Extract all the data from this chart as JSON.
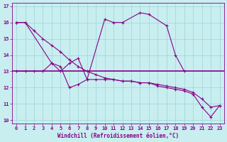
{
  "xlabel": "Windchill (Refroidissement éolien,°C)",
  "background_color": "#c8eef0",
  "grid_color": "#9dd4d8",
  "line_color": "#880088",
  "xlim": [
    -0.5,
    23.5
  ],
  "ylim": [
    9.8,
    17.2
  ],
  "yticks": [
    10,
    11,
    12,
    13,
    14,
    15,
    16,
    17
  ],
  "xticks": [
    0,
    1,
    2,
    3,
    4,
    5,
    6,
    7,
    8,
    9,
    10,
    11,
    12,
    13,
    14,
    15,
    16,
    17,
    18,
    19,
    20,
    21,
    22,
    23
  ],
  "x": [
    0,
    1,
    2,
    3,
    4,
    5,
    6,
    7,
    8,
    9,
    10,
    11,
    12,
    13,
    14,
    15,
    16,
    17,
    18,
    19,
    20,
    21,
    22,
    23
  ],
  "line1_x": [
    0,
    1,
    4,
    5,
    6,
    7,
    8,
    10,
    11,
    12,
    14,
    15,
    17,
    18,
    19
  ],
  "line1_y": [
    16.0,
    16.0,
    13.5,
    13.0,
    13.5,
    13.8,
    12.5,
    16.2,
    16.0,
    16.0,
    16.6,
    16.5,
    15.8,
    14.0,
    13.0
  ],
  "line2": [
    16.0,
    16.0,
    15.5,
    15.0,
    14.6,
    14.2,
    13.7,
    13.3,
    13.0,
    12.8,
    12.6,
    12.5,
    12.4,
    12.4,
    12.3,
    12.3,
    12.2,
    12.1,
    12.0,
    11.9,
    11.7,
    11.3,
    10.8,
    10.9
  ],
  "line3_y": 13.0,
  "line4": [
    13.0,
    13.0,
    13.0,
    13.0,
    13.5,
    13.3,
    12.0,
    12.2,
    12.5,
    12.5,
    12.5,
    12.5,
    12.4,
    12.4,
    12.3,
    12.3,
    12.1,
    12.0,
    11.9,
    11.8,
    11.6,
    10.8,
    10.2,
    10.9
  ]
}
